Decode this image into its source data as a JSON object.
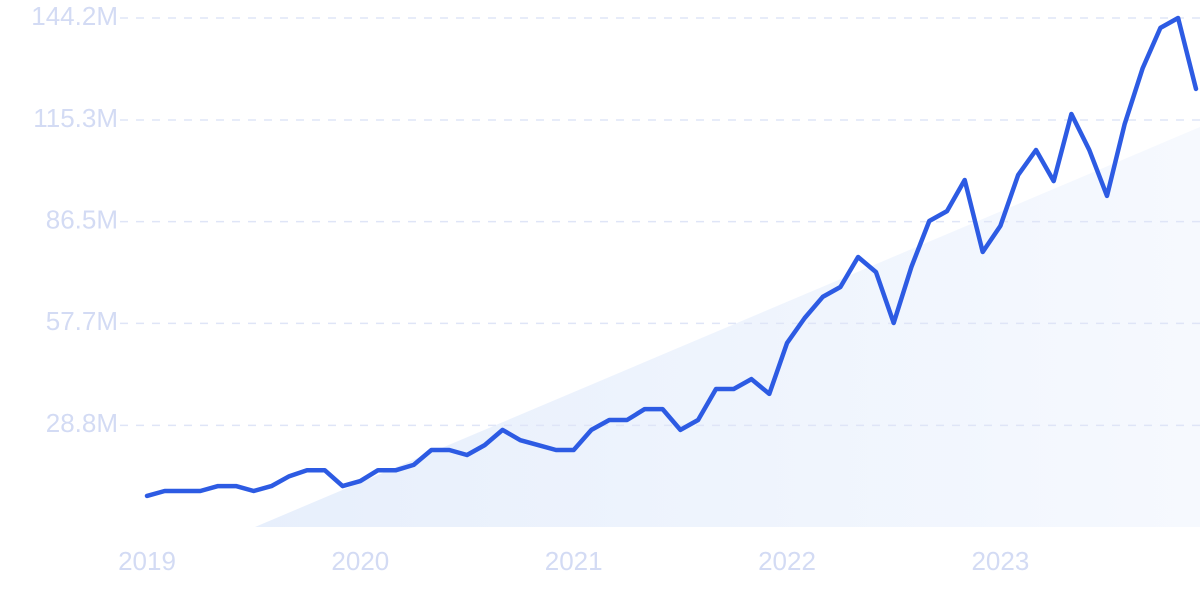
{
  "chart_data": {
    "type": "line",
    "color": "#2d5be3",
    "x": [
      2019.0,
      2019.083,
      2019.167,
      2019.25,
      2019.333,
      2019.417,
      2019.5,
      2019.583,
      2019.667,
      2019.75,
      2019.833,
      2019.917,
      2020.0,
      2020.083,
      2020.167,
      2020.25,
      2020.333,
      2020.417,
      2020.5,
      2020.583,
      2020.667,
      2020.75,
      2020.833,
      2020.917,
      2021.0,
      2021.083,
      2021.167,
      2021.25,
      2021.333,
      2021.417,
      2021.5,
      2021.583,
      2021.667,
      2021.75,
      2021.833,
      2021.917,
      2022.0,
      2022.083,
      2022.167,
      2022.25,
      2022.333,
      2022.417,
      2022.5,
      2022.583,
      2022.667,
      2022.75,
      2022.833,
      2022.917,
      2023.0,
      2023.083,
      2023.167,
      2023.25,
      2023.333,
      2023.417,
      2023.5,
      2023.583,
      2023.667,
      2023.75,
      2023.833,
      2023.917
    ],
    "values": [
      8.8,
      10.2,
      10.2,
      10.2,
      11.6,
      11.6,
      10.2,
      11.6,
      14.4,
      16.1,
      16.1,
      11.6,
      13.0,
      16.1,
      16.1,
      17.6,
      21.8,
      21.8,
      20.4,
      23.2,
      27.5,
      24.6,
      23.2,
      21.8,
      21.8,
      27.5,
      30.3,
      30.3,
      33.4,
      33.4,
      27.5,
      30.3,
      39.1,
      39.1,
      41.9,
      37.7,
      52.1,
      59.2,
      65.2,
      68.0,
      76.5,
      72.2,
      57.8,
      73.7,
      86.7,
      89.5,
      98.3,
      77.9,
      85.3,
      99.7,
      106.8,
      98.0,
      117.0,
      106.8,
      93.8,
      114.2,
      130.0,
      141.4,
      144.2,
      124.1
    ],
    "xlim": [
      2019.0,
      2023.917
    ],
    "xticks": [
      2019,
      2020,
      2021,
      2022,
      2023
    ],
    "ylim": [
      0,
      144.2
    ],
    "yticks": [
      {
        "value": 28.8,
        "label": "28.8M"
      },
      {
        "value": 57.7,
        "label": "57.7M"
      },
      {
        "value": 86.5,
        "label": "86.5M"
      },
      {
        "value": 115.3,
        "label": "115.3M"
      },
      {
        "value": 144.2,
        "label": "144.2M"
      }
    ],
    "grid": true
  }
}
